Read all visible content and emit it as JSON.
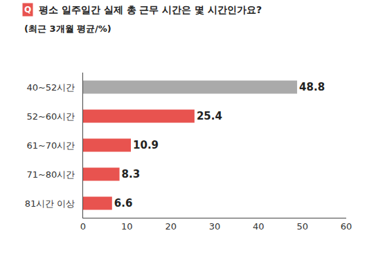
{
  "chart_data": {
    "type": "bar",
    "orientation": "horizontal",
    "title_badge": "Q",
    "title": "평소 일주일간 실제 총 근무 시간은 몇 시간인가요?",
    "subtitle": "(최근 3개월 평균/%)",
    "categories": [
      "40~52시간",
      "52~60시간",
      "61~70시간",
      "71~80시간",
      "81시간 이상"
    ],
    "values": [
      48.8,
      25.4,
      10.9,
      8.3,
      6.6
    ],
    "colors": [
      "#aaaaaa",
      "#e8534f",
      "#e8534f",
      "#e8534f",
      "#e8534f"
    ],
    "xlim": [
      0,
      60
    ],
    "xticks": [
      0,
      10,
      20,
      30,
      40,
      50,
      60
    ],
    "grid": false,
    "data_labels": true
  }
}
